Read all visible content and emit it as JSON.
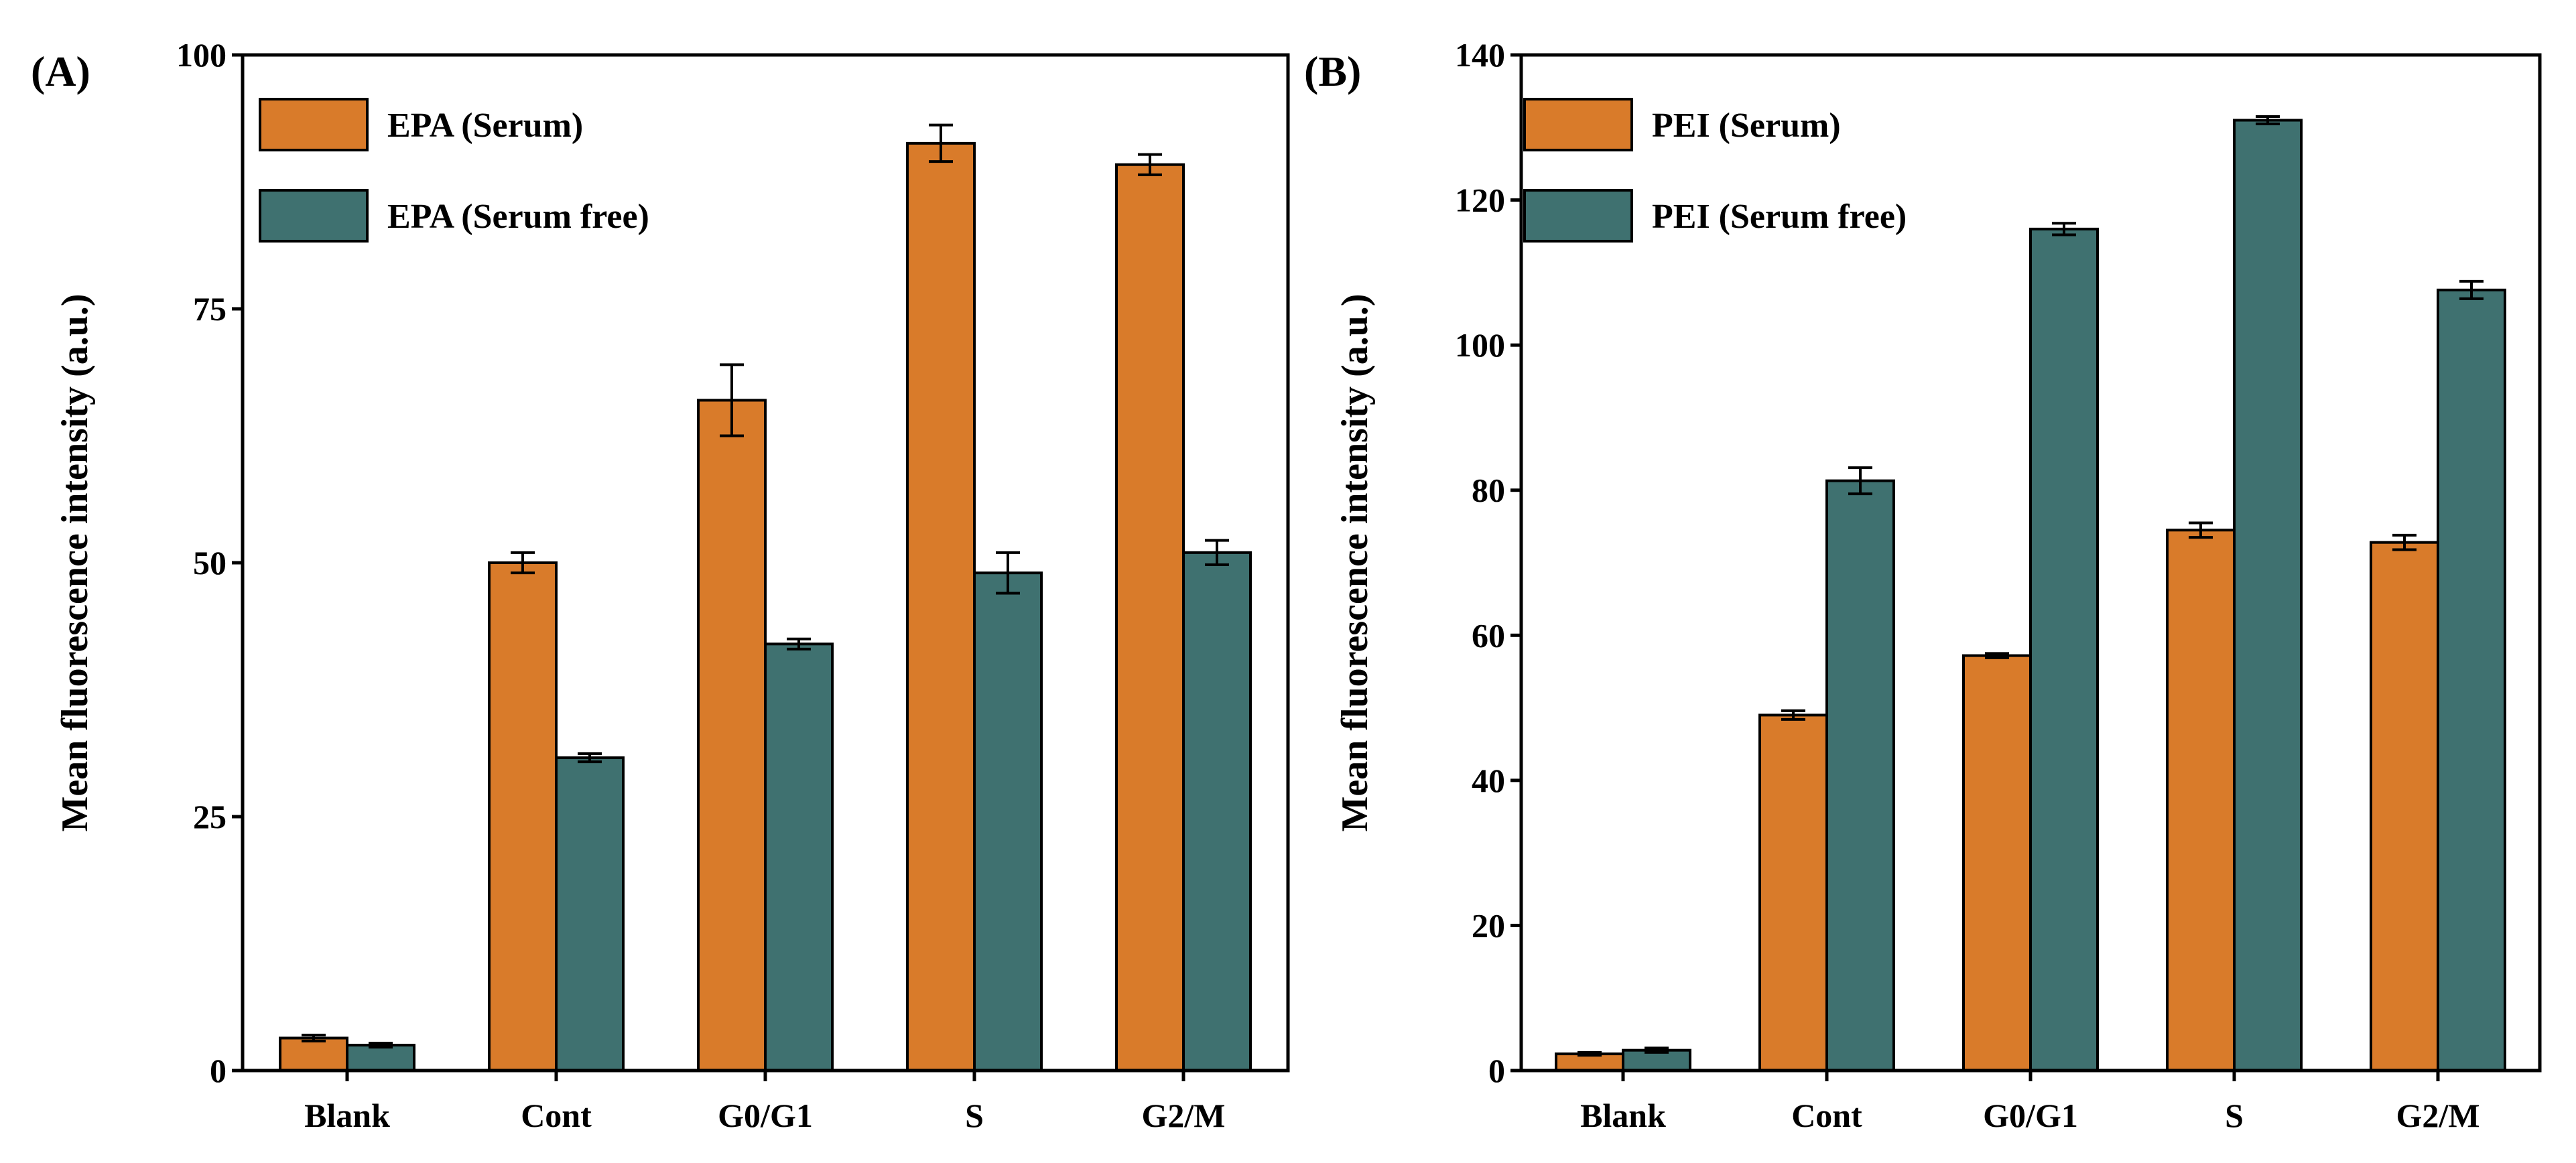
{
  "chart_data": [
    {
      "type": "bar",
      "panel_label": "(A)",
      "ylabel": "Mean fluorescence intensity (a.u.)",
      "xlabel": "",
      "ylim": [
        0,
        100
      ],
      "yticks": [
        0,
        25,
        50,
        75,
        100
      ],
      "categories": [
        "Blank",
        "Cont",
        "G0/G1",
        "S",
        "G2/M"
      ],
      "series": [
        {
          "name": "EPA (Serum)",
          "color": "#D97B2A",
          "values": [
            3.2,
            50,
            66,
            91.3,
            89.2
          ],
          "errors": [
            0.3,
            1.0,
            3.5,
            1.8,
            1.0
          ]
        },
        {
          "name": "EPA (Serum free)",
          "color": "#3F7170",
          "values": [
            2.5,
            30.8,
            42,
            49,
            51
          ],
          "errors": [
            0.2,
            0.4,
            0.5,
            2.0,
            1.2
          ]
        }
      ],
      "legend_position": "top-left",
      "grid": false
    },
    {
      "type": "bar",
      "panel_label": "(B)",
      "ylabel": "Mean fluorescence intensity (a.u.)",
      "xlabel": "",
      "ylim": [
        0,
        140
      ],
      "yticks": [
        0,
        20,
        40,
        60,
        80,
        100,
        120,
        140
      ],
      "categories": [
        "Blank",
        "Cont",
        "G0/G1",
        "S",
        "G2/M"
      ],
      "series": [
        {
          "name": "PEI (Serum)",
          "color": "#D97B2A",
          "values": [
            2.3,
            49,
            57.2,
            74.5,
            72.8
          ],
          "errors": [
            0.2,
            0.6,
            0.3,
            1.0,
            1.0
          ]
        },
        {
          "name": "PEI (Serum free)",
          "color": "#3F7170",
          "values": [
            2.8,
            81.3,
            116,
            131,
            107.6
          ],
          "errors": [
            0.3,
            1.8,
            0.8,
            0.5,
            1.2
          ]
        }
      ],
      "legend_position": "top-left",
      "grid": false
    }
  ]
}
